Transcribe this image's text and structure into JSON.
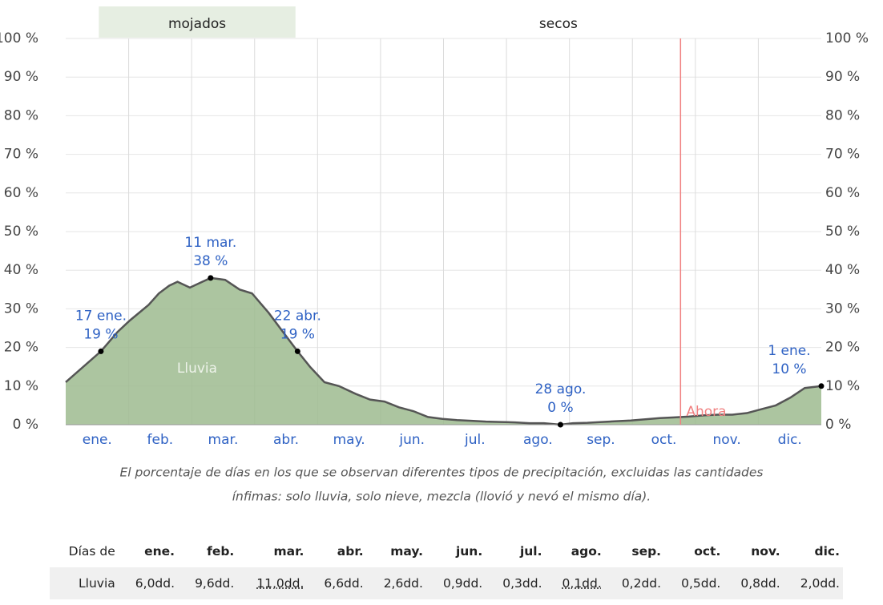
{
  "chart_data": {
    "type": "area",
    "categories": [
      "ene.",
      "feb.",
      "mar.",
      "abr.",
      "may.",
      "jun.",
      "jul.",
      "ago.",
      "sep.",
      "oct.",
      "nov.",
      "dic."
    ],
    "xlim": [
      0,
      365
    ],
    "ylim": [
      0,
      100
    ],
    "yticks": [
      {
        "value": 0,
        "label": "0 %"
      },
      {
        "value": 10,
        "label": "10 %"
      },
      {
        "value": 20,
        "label": "20 %"
      },
      {
        "value": 30,
        "label": "30 %"
      },
      {
        "value": 40,
        "label": "40 %"
      },
      {
        "value": 50,
        "label": "50 %"
      },
      {
        "value": 60,
        "label": "60 %"
      },
      {
        "value": 70,
        "label": "70 %"
      },
      {
        "value": 80,
        "label": "80 %"
      },
      {
        "value": 90,
        "label": "90 %"
      },
      {
        "value": 100,
        "label": "100 %"
      }
    ],
    "grid": true,
    "bands": [
      {
        "label": "mojados",
        "start": 16,
        "end": 111,
        "color": "#e6eee2"
      },
      {
        "label": "secos",
        "start": 111,
        "end": 365,
        "color": null
      }
    ],
    "series": [
      {
        "name": "Lluvia",
        "color": "#9dbb8f",
        "line_color": "#555555",
        "x": [
          0,
          17,
          25,
          31,
          40,
          45,
          50,
          54,
          60,
          66,
          70,
          77,
          84,
          90,
          98,
          105,
          112,
          118,
          125,
          132,
          140,
          147,
          154,
          161,
          168,
          175,
          182,
          189,
          196,
          203,
          210,
          217,
          224,
          231,
          239,
          245,
          252,
          259,
          266,
          273,
          280,
          287,
          294,
          301,
          308,
          315,
          322,
          329,
          336,
          343,
          350,
          357,
          365
        ],
        "values": [
          11,
          19,
          24,
          27,
          31,
          34,
          36,
          37,
          35.5,
          37,
          38,
          37.5,
          35,
          34,
          29,
          24,
          19,
          15,
          11,
          10,
          8,
          6.5,
          6,
          4.5,
          3.5,
          2,
          1.5,
          1.2,
          1,
          0.8,
          0.7,
          0.6,
          0.4,
          0.4,
          0,
          0.4,
          0.5,
          0.7,
          0.9,
          1.1,
          1.4,
          1.7,
          1.9,
          2.1,
          2.4,
          2.6,
          2.6,
          3,
          4,
          5,
          7,
          9.5,
          10
        ]
      }
    ],
    "annotations": [
      {
        "x": 17,
        "value": 19,
        "date": "17 ene.",
        "label": "19 %"
      },
      {
        "x": 70,
        "value": 38,
        "date": "11 mar.",
        "label": "38 %"
      },
      {
        "x": 112,
        "value": 19,
        "date": "22 abr.",
        "label": "19 %"
      },
      {
        "x": 239,
        "value": 0,
        "date": "28 ago.",
        "label": "0 %"
      },
      {
        "x": 365,
        "value": 10,
        "date": "1 ene.",
        "label": "10 %"
      }
    ],
    "now": {
      "x": 297,
      "label": "Ahora",
      "color": "#f08080"
    },
    "caption": [
      "El porcentaje de días en los que se observan diferentes tipos de precipitación, excluidas las cantidades",
      "ínfimas: solo lluvia, solo nieve, mezcla (llovió y nevó el mismo día)."
    ]
  },
  "table": {
    "header": [
      "Días de",
      "ene.",
      "feb.",
      "mar.",
      "abr.",
      "may.",
      "jun.",
      "jul.",
      "ago.",
      "sep.",
      "oct.",
      "nov.",
      "dic."
    ],
    "rows": [
      [
        "Lluvia",
        "6,0dd.",
        "9,6dd.",
        "11,0dd.",
        "6,6dd.",
        "2,6dd.",
        "0,9dd.",
        "0,3dd.",
        "0,1dd.",
        "0,2dd.",
        "0,5dd.",
        "0,8dd.",
        "2,0dd."
      ]
    ]
  }
}
